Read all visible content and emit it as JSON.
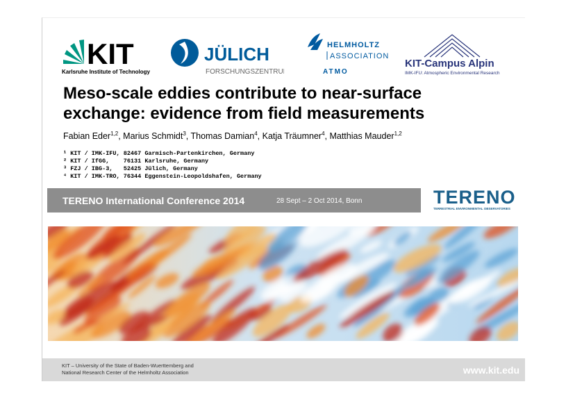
{
  "logos": {
    "kit": {
      "mark": "KIT",
      "caption": "Karlsruhe Institute of Technology"
    },
    "juelich": {
      "name": "JÜLICH",
      "caption": "FORSCHUNGSZENTRUM"
    },
    "helmholtz": {
      "line1": "HELMHOLTZ",
      "line2": "ASSOCIATION",
      "sub": "ATMO"
    },
    "campus": {
      "name": "KIT-Campus Alpin",
      "caption": "IMK-IFU: Atmospheric Environmental Research"
    }
  },
  "title": {
    "line1": "Meso-scale eddies contribute to near-surface",
    "line2": "exchange: evidence from field measurements"
  },
  "authors": [
    {
      "name": "Fabian Eder",
      "sup": "1,2"
    },
    {
      "name": ", Marius Schmidt",
      "sup": "3"
    },
    {
      "name": ", Thomas Damian",
      "sup": "4"
    },
    {
      "name": ", Katja Träumner",
      "sup": "4"
    },
    {
      "name": ", Matthias Mauder",
      "sup": "1,2"
    }
  ],
  "affiliations": [
    "¹ KIT / IMK-IFU, 82467 Garmisch-Partenkirchen, Germany",
    "² KIT / IfGG,    76131 Karlsruhe, Germany",
    "³ FZJ / IBG-3,   52425 Jülich, Germany",
    "⁴ KIT / IMK-TRO, 76344 Eggenstein-Leopoldshafen, Germany"
  ],
  "conference": {
    "name": "TERENO International Conference 2014",
    "details": "28 Sept – 2 Oct 2014, Bonn"
  },
  "tereno": {
    "name": "TERENO",
    "caption": "TERRESTRIAL ENVIRONMENTAL OBSERVATORIES"
  },
  "footer": {
    "line1": "KIT – University of the State of Baden-Wuerttemberg and",
    "line2": "National Research Center of the Helmholtz Association",
    "url": "www.kit.edu"
  }
}
